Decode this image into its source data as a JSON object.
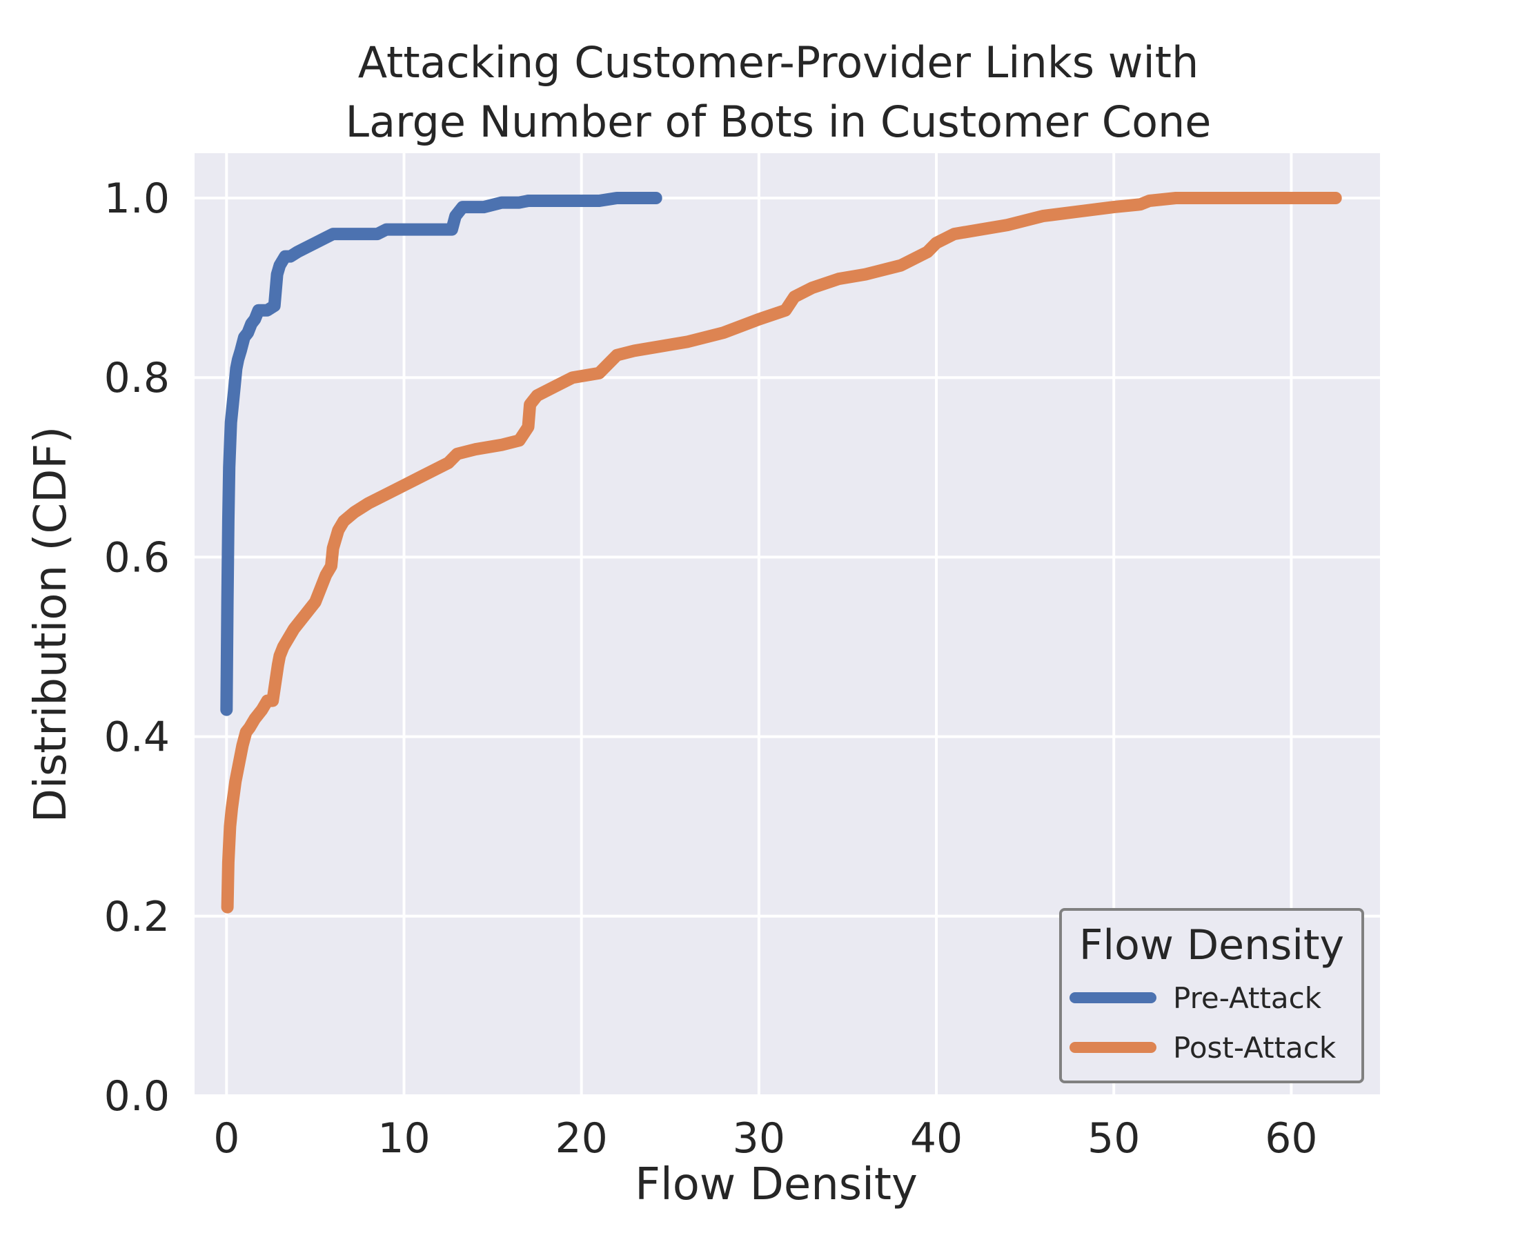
{
  "chart_data": {
    "type": "line",
    "title": [
      "Attacking Customer-Provider Links with",
      "Large Number of Bots in Customer Cone"
    ],
    "xlabel": "Flow Density",
    "ylabel": "Distribution (CDF)",
    "xlim": [
      -1.8,
      65
    ],
    "ylim": [
      0,
      1.05
    ],
    "xticks": [
      0,
      10,
      20,
      30,
      40,
      50,
      60
    ],
    "yticks": [
      0.0,
      0.2,
      0.4,
      0.6,
      0.8,
      1.0
    ],
    "xtick_labels": [
      "0",
      "10",
      "20",
      "30",
      "40",
      "50",
      "60"
    ],
    "ytick_labels": [
      "0.0",
      "0.2",
      "0.4",
      "0.6",
      "0.8",
      "1.0"
    ],
    "grid": true,
    "background": "#eaeaf2",
    "legend": {
      "title": "Flow Density",
      "placement": "lower-right"
    },
    "series": [
      {
        "name": "Pre-Attack",
        "color": "#4c72b0",
        "x": [
          0,
          0.05,
          0.1,
          0.15,
          0.25,
          0.35,
          0.45,
          0.55,
          0.65,
          0.8,
          1.0,
          1.2,
          1.4,
          1.6,
          1.8,
          2.0,
          2.3,
          2.7,
          2.85,
          3.0,
          3.3,
          3.6,
          4.0,
          4.5,
          5.0,
          5.5,
          6.0,
          7.0,
          8.5,
          9.0,
          10.0,
          12.7,
          12.9,
          13.3,
          14.5,
          15.5,
          16.5,
          17.0,
          19.0,
          21.0,
          22.0,
          24.2
        ],
        "y": [
          0.43,
          0.55,
          0.64,
          0.7,
          0.75,
          0.77,
          0.79,
          0.81,
          0.82,
          0.83,
          0.845,
          0.85,
          0.86,
          0.865,
          0.875,
          0.875,
          0.875,
          0.88,
          0.915,
          0.925,
          0.935,
          0.935,
          0.94,
          0.945,
          0.95,
          0.955,
          0.96,
          0.96,
          0.96,
          0.965,
          0.965,
          0.965,
          0.98,
          0.99,
          0.99,
          0.995,
          0.995,
          0.997,
          0.997,
          0.997,
          1.0,
          1.0
        ]
      },
      {
        "name": "Post-Attack",
        "color": "#dd8452",
        "x": [
          0.05,
          0.1,
          0.2,
          0.3,
          0.5,
          0.7,
          0.9,
          1.1,
          1.3,
          1.6,
          2.0,
          2.3,
          2.6,
          2.9,
          3.0,
          3.2,
          3.5,
          3.8,
          4.2,
          4.6,
          5.0,
          5.3,
          5.6,
          5.9,
          6.0,
          6.3,
          6.6,
          7.2,
          8.0,
          9.0,
          10.0,
          11.0,
          12.0,
          12.5,
          13.0,
          14.0,
          15.5,
          16.5,
          17.0,
          17.1,
          17.5,
          18.5,
          19.5,
          21.0,
          21.5,
          22.0,
          23.0,
          24.5,
          26.0,
          28.0,
          30.0,
          31.5,
          32.0,
          33.0,
          34.5,
          36.0,
          38.0,
          39.5,
          40.0,
          41.0,
          42.5,
          44.0,
          46.0,
          48.0,
          50.0,
          51.5,
          52.0,
          53.5,
          55.0,
          58.0,
          62.5
        ],
        "y": [
          0.21,
          0.26,
          0.3,
          0.32,
          0.35,
          0.37,
          0.39,
          0.405,
          0.41,
          0.42,
          0.43,
          0.44,
          0.44,
          0.48,
          0.49,
          0.5,
          0.51,
          0.52,
          0.53,
          0.54,
          0.55,
          0.565,
          0.58,
          0.59,
          0.61,
          0.63,
          0.64,
          0.65,
          0.66,
          0.67,
          0.68,
          0.69,
          0.7,
          0.705,
          0.715,
          0.72,
          0.725,
          0.73,
          0.745,
          0.77,
          0.78,
          0.79,
          0.8,
          0.805,
          0.815,
          0.825,
          0.83,
          0.835,
          0.84,
          0.85,
          0.865,
          0.875,
          0.89,
          0.9,
          0.91,
          0.915,
          0.925,
          0.94,
          0.95,
          0.96,
          0.965,
          0.97,
          0.98,
          0.985,
          0.99,
          0.993,
          0.997,
          1.0,
          1.0,
          1.0,
          1.0
        ]
      }
    ]
  }
}
